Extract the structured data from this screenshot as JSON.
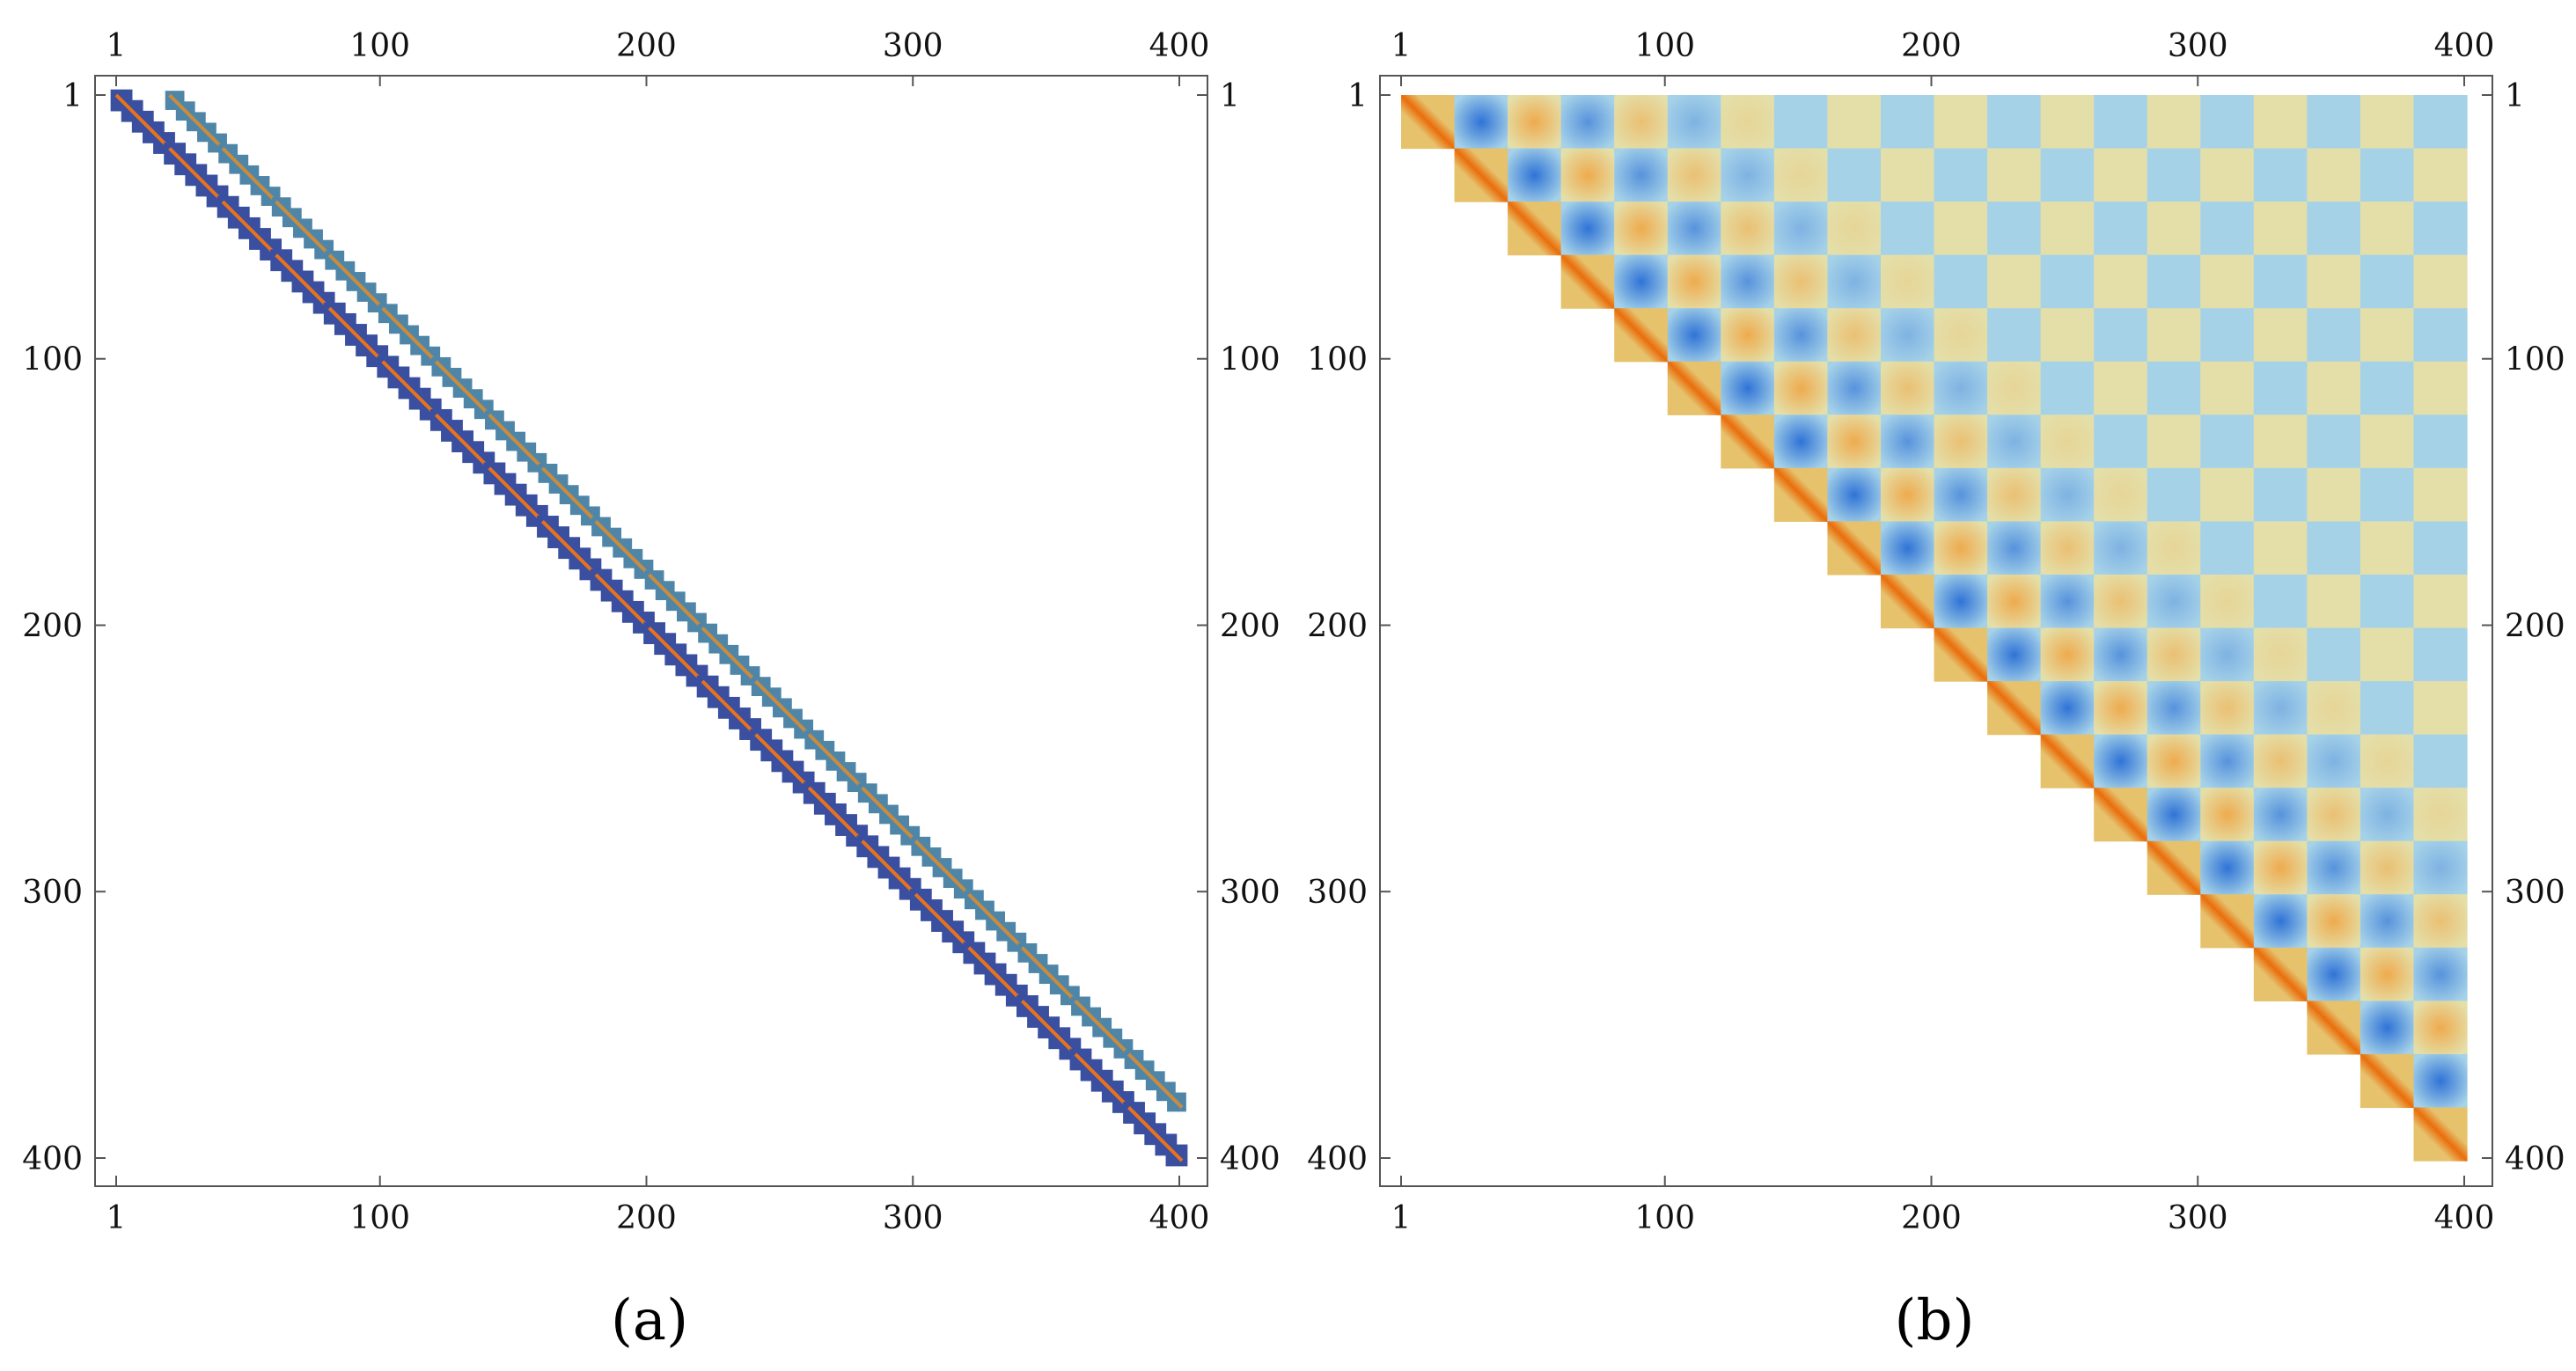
{
  "chart_data": [
    {
      "type": "heatmap",
      "panel_label": "(a)",
      "title": "",
      "xlabel": "",
      "ylabel": "",
      "xlim": [
        1,
        400
      ],
      "ylim": [
        1,
        400
      ],
      "y_direction": "downward",
      "tick_labels": [
        "1",
        "100",
        "200",
        "300",
        "400"
      ],
      "tick_values": [
        1,
        100,
        200,
        300,
        400
      ],
      "block_size": 20,
      "block_count": 20,
      "bands": [
        {
          "name": "main-diagonal",
          "row_offset": 0,
          "col_offset": 0,
          "half_width": 3,
          "colors": [
            "#3a4fa0",
            "#e9721c"
          ]
        },
        {
          "name": "upper-off-diagonal",
          "row_offset": 0,
          "col_offset": 20,
          "half_width": 2.5,
          "colors": [
            "#4f86a8",
            "#c98c3f"
          ]
        }
      ],
      "background_color": "#ffffff"
    },
    {
      "type": "heatmap",
      "panel_label": "(b)",
      "title": "",
      "xlabel": "",
      "ylabel": "",
      "xlim": [
        1,
        400
      ],
      "ylim": [
        1,
        400
      ],
      "y_direction": "downward",
      "tick_labels": [
        "1",
        "100",
        "200",
        "300",
        "400"
      ],
      "tick_values": [
        1,
        100,
        200,
        300,
        400
      ],
      "block_size": 20,
      "block_count": 20,
      "structure": "upper-triangular checkerboard of 20x20 blocks",
      "palette": {
        "diag_edge": "#e6c26c",
        "diag_center": "#ea6d0b",
        "blue_strong": "#2f73d6",
        "blue_bg": "#a6d2e8",
        "orange_strong": "#f0a13c",
        "tan_bg": "#e4dfa9"
      },
      "background_color": "#ffffff"
    }
  ]
}
